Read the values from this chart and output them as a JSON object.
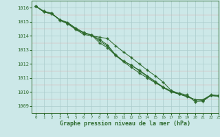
{
  "title": "Graphe pression niveau de la mer (hPa)",
  "xlim": [
    -0.5,
    23
  ],
  "ylim": [
    1008.5,
    1016.5
  ],
  "yticks": [
    1009,
    1010,
    1011,
    1012,
    1013,
    1014,
    1015,
    1016
  ],
  "xticks": [
    0,
    1,
    2,
    3,
    4,
    5,
    6,
    7,
    8,
    9,
    10,
    11,
    12,
    13,
    14,
    15,
    16,
    17,
    18,
    19,
    20,
    21,
    22,
    23
  ],
  "background_color": "#cce8e8",
  "grid_color": "#aacccc",
  "line_color": "#2d6a2d",
  "series": [
    [
      1016.1,
      1015.75,
      1015.6,
      1015.1,
      1014.85,
      1014.45,
      1014.1,
      1014.0,
      1013.9,
      1013.8,
      1013.3,
      1012.85,
      1012.45,
      1012.0,
      1011.55,
      1011.15,
      1010.7,
      1010.1,
      1009.9,
      1009.8,
      1009.3,
      1009.35,
      1009.75,
      1009.7
    ],
    [
      1016.1,
      1015.7,
      1015.55,
      1015.15,
      1014.9,
      1014.5,
      1014.2,
      1014.05,
      1013.5,
      1013.15,
      1012.6,
      1012.15,
      1011.75,
      1011.35,
      1011.0,
      1010.65,
      1010.35,
      1010.05,
      1009.85,
      1009.7,
      1009.45,
      1009.4,
      1009.75,
      1009.7
    ],
    [
      1016.1,
      1015.7,
      1015.55,
      1015.15,
      1014.9,
      1014.5,
      1014.2,
      1014.05,
      1013.65,
      1013.25,
      1012.65,
      1012.2,
      1011.9,
      1011.5,
      1011.1,
      1010.7,
      1010.3,
      1010.0,
      1009.85,
      1009.65,
      1009.45,
      1009.45,
      1009.75,
      1009.7
    ],
    [
      1016.1,
      1015.75,
      1015.6,
      1015.15,
      1014.95,
      1014.55,
      1014.25,
      1014.05,
      1013.75,
      1013.35,
      1012.65,
      1012.2,
      1011.9,
      1011.55,
      1011.15,
      1010.75,
      1010.35,
      1010.05,
      1009.85,
      1009.7,
      1009.45,
      1009.45,
      1009.8,
      1009.75
    ]
  ],
  "marker": "+",
  "markersize": 3.5,
  "linewidth": 0.75,
  "markeredgewidth": 1.0
}
